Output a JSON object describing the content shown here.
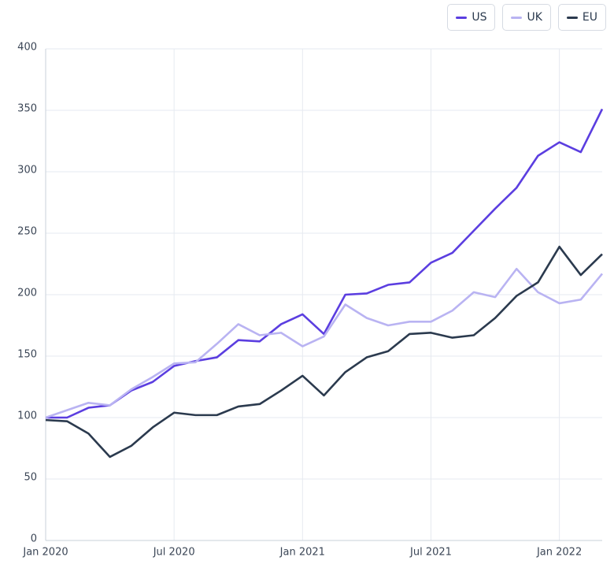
{
  "chart_data": {
    "type": "line",
    "x": [
      "2020-01",
      "2020-02",
      "2020-03",
      "2020-04",
      "2020-05",
      "2020-06",
      "2020-07",
      "2020-08",
      "2020-09",
      "2020-10",
      "2020-11",
      "2020-12",
      "2021-01",
      "2021-02",
      "2021-03",
      "2021-04",
      "2021-05",
      "2021-06",
      "2021-07",
      "2021-08",
      "2021-09",
      "2021-10",
      "2021-11",
      "2021-12",
      "2022-01",
      "2022-02",
      "2022-03"
    ],
    "series": [
      {
        "name": "US",
        "color": "#5b3ee0",
        "values": [
          100,
          100,
          108,
          110,
          122,
          129,
          142,
          146,
          149,
          163,
          162,
          176,
          184,
          168,
          200,
          201,
          208,
          210,
          226,
          234,
          252,
          270,
          287,
          313,
          324,
          316,
          351
        ]
      },
      {
        "name": "UK",
        "color": "#b9b3f2",
        "values": [
          100,
          106,
          112,
          110,
          123,
          133,
          144,
          145,
          160,
          176,
          167,
          169,
          158,
          166,
          192,
          181,
          175,
          178,
          178,
          187,
          202,
          198,
          221,
          202,
          193,
          196,
          217
        ]
      },
      {
        "name": "EU",
        "color": "#2b3a4e",
        "values": [
          98,
          97,
          87,
          68,
          77,
          92,
          104,
          102,
          102,
          109,
          111,
          122,
          134,
          118,
          137,
          149,
          154,
          168,
          169,
          165,
          167,
          181,
          199,
          210,
          239,
          216,
          233
        ]
      }
    ],
    "xlim": [
      "2020-01",
      "2022-03"
    ],
    "xticks": [
      {
        "value": "2020-01",
        "label": "Jan 2020"
      },
      {
        "value": "2020-07",
        "label": "Jul 2020"
      },
      {
        "value": "2021-01",
        "label": "Jan 2021"
      },
      {
        "value": "2021-07",
        "label": "Jul 2021"
      },
      {
        "value": "2022-01",
        "label": "Jan 2022"
      }
    ],
    "ylim": [
      0,
      400
    ],
    "yticks": [
      0,
      50,
      100,
      150,
      200,
      250,
      300,
      350,
      400
    ],
    "grid": true,
    "legend": "top-right"
  }
}
